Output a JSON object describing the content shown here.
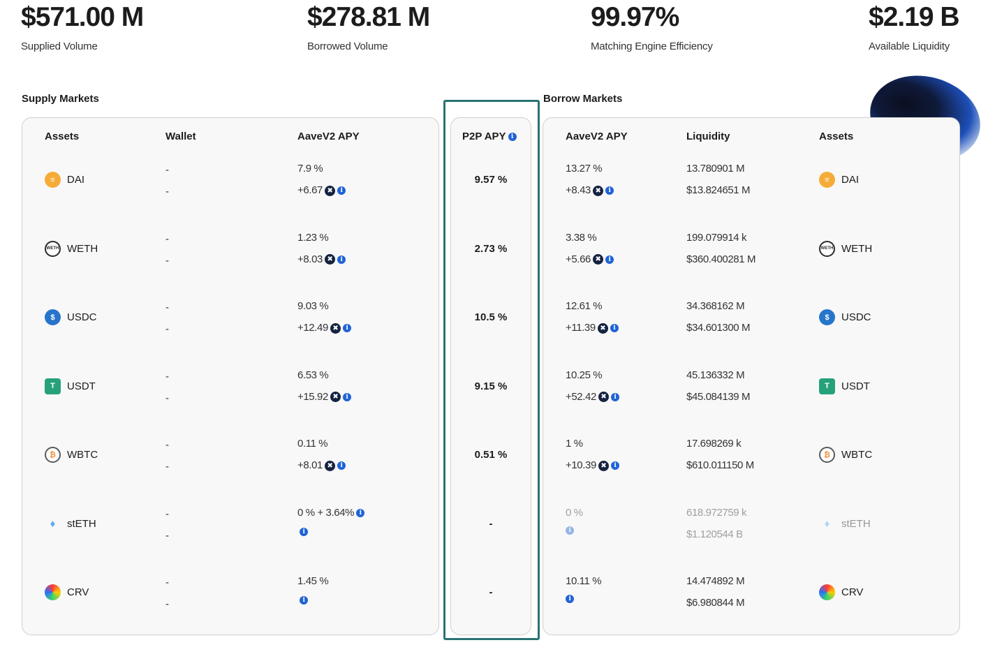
{
  "stats": [
    {
      "value": "$571.00 M",
      "label": "Supplied Volume"
    },
    {
      "value": "$278.81 M",
      "label": "Borrowed Volume"
    },
    {
      "value": "99.97%",
      "label": "Matching Engine Efficiency"
    },
    {
      "value": "$2.19 B",
      "label": "Available Liquidity"
    }
  ],
  "supply": {
    "title": "Supply Markets",
    "headers": {
      "assets": "Assets",
      "wallet": "Wallet",
      "apy": "AaveV2 APY"
    },
    "rows": [
      {
        "asset": "DAI",
        "icon": "dai-icon",
        "wallet1": "-",
        "wallet2": "-",
        "apy": "7.9 %",
        "bonus": "+6.67"
      },
      {
        "asset": "WETH",
        "icon": "weth-icon",
        "wallet1": "-",
        "wallet2": "-",
        "apy": "1.23 %",
        "bonus": "+8.03"
      },
      {
        "asset": "USDC",
        "icon": "usdc-icon",
        "wallet1": "-",
        "wallet2": "-",
        "apy": "9.03 %",
        "bonus": "+12.49"
      },
      {
        "asset": "USDT",
        "icon": "usdt-icon",
        "wallet1": "-",
        "wallet2": "-",
        "apy": "6.53 %",
        "bonus": "+15.92"
      },
      {
        "asset": "WBTC",
        "icon": "wbtc-icon",
        "wallet1": "-",
        "wallet2": "-",
        "apy": "0.11 %",
        "bonus": "+8.01"
      },
      {
        "asset": "stETH",
        "icon": "steth-icon",
        "wallet1": "-",
        "wallet2": "-",
        "apy": "0 % + 3.64%",
        "bonus": ""
      },
      {
        "asset": "CRV",
        "icon": "crv-icon",
        "wallet1": "-",
        "wallet2": "-",
        "apy": "1.45 %",
        "bonus": ""
      }
    ]
  },
  "p2p": {
    "header": "P2P APY",
    "values": [
      "9.57 %",
      "2.73 %",
      "10.5 %",
      "9.15 %",
      "0.51 %",
      "-",
      "-"
    ]
  },
  "borrow": {
    "title": "Borrow Markets",
    "headers": {
      "apy": "AaveV2 APY",
      "liquidity": "Liquidity",
      "assets": "Assets"
    },
    "rows": [
      {
        "apy": "13.27 %",
        "bonus": "+8.43",
        "liq1": "13.780901 M",
        "liq2": "$13.824651 M",
        "asset": "DAI"
      },
      {
        "apy": "3.38 %",
        "bonus": "+5.66",
        "liq1": "199.079914 k",
        "liq2": "$360.400281 M",
        "asset": "WETH"
      },
      {
        "apy": "12.61 %",
        "bonus": "+11.39",
        "liq1": "34.368162 M",
        "liq2": "$34.601300 M",
        "asset": "USDC"
      },
      {
        "apy": "10.25 %",
        "bonus": "+52.42",
        "liq1": "45.136332 M",
        "liq2": "$45.084139 M",
        "asset": "USDT"
      },
      {
        "apy": "1 %",
        "bonus": "+10.39",
        "liq1": "17.698269 k",
        "liq2": "$610.011150 M",
        "asset": "WBTC"
      },
      {
        "apy": "0 %",
        "bonus": "",
        "liq1": "618.972759 k",
        "liq2": "$1.120544 B",
        "asset": "stETH"
      },
      {
        "apy": "10.11 %",
        "bonus": "",
        "liq1": "14.474892 M",
        "liq2": "$6.980844 M",
        "asset": "CRV"
      }
    ]
  }
}
